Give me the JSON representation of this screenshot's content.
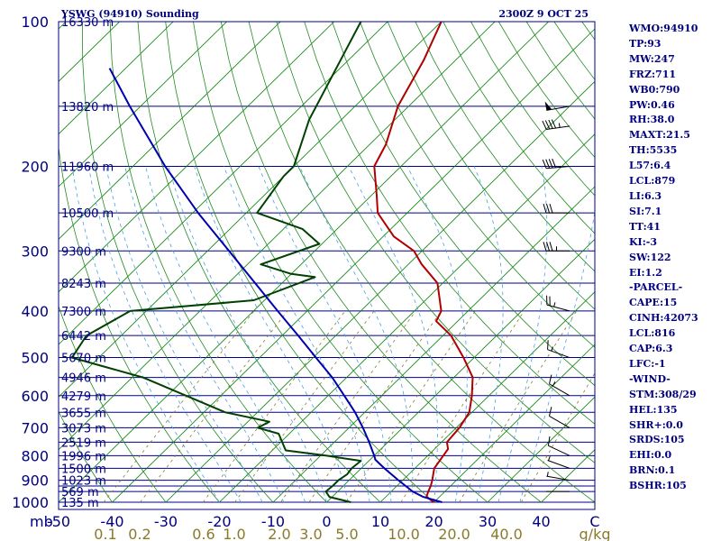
{
  "header": {
    "station": "YSWG (94910) Sounding",
    "time": "2300Z  9 OCT 25"
  },
  "colors": {
    "frame": "#000080",
    "isobar": "#000080",
    "isotherm": "#008000",
    "dry_adiabat": "#228b22",
    "moist_adiabat": "#4aa0e0",
    "mixing_ratio": "#8a7a2a",
    "temperature": "#b00000",
    "dewpoint": "#004000",
    "parcel": "#0000b0"
  },
  "indices": [
    "WMO:94910",
    "TP:93",
    "MW:247",
    "FRZ:711",
    "WB0:790",
    "PW:0.46",
    "RH:38.0",
    "MAXT:21.5",
    "TH:5535",
    "L57:6.4",
    "LCL:879",
    "LI:6.3",
    "SI:7.1",
    "TT:41",
    "KI:-3",
    "SW:122",
    "EI:1.2",
    "-PARCEL-",
    "CAPE:15",
    "CINH:42073",
    "LCL:816",
    "CAP:6.3",
    "LFC:-1",
    "-WIND-",
    "STM:308/29",
    "HEL:135",
    "SHR+:0.0",
    "SRDS:105",
    "EHI:0.0",
    "BRN:0.1",
    "BSHR:105"
  ],
  "chart_data": {
    "type": "line",
    "title": "YSWG (94910) Sounding",
    "subtitle": "2300Z  9 OCT 25",
    "xlabel": "",
    "ylabel": "mb",
    "x_axis_ticks": [
      "-50",
      "-40",
      "-30",
      "-20",
      "-10",
      "0",
      "10",
      "20",
      "30",
      "40",
      "C"
    ],
    "y_axis_labels": [
      "100",
      "200",
      "300",
      "400",
      "500",
      "600",
      "700",
      "800",
      "900",
      "1000"
    ],
    "pressure_levels": [
      100,
      150,
      200,
      250,
      300,
      350,
      400,
      450,
      500,
      550,
      600,
      650,
      700,
      750,
      800,
      850,
      900,
      925,
      950,
      1000
    ],
    "height_labels": [
      {
        "p": 100,
        "label": "16330 m"
      },
      {
        "p": 150,
        "label": "13820 m"
      },
      {
        "p": 200,
        "label": "11960 m"
      },
      {
        "p": 250,
        "label": "10500 m"
      },
      {
        "p": 300,
        "label": "9300 m"
      },
      {
        "p": 350,
        "label": "8243 m"
      },
      {
        "p": 400,
        "label": "7300 m"
      },
      {
        "p": 450,
        "label": "6442 m"
      },
      {
        "p": 500,
        "label": "5670 m"
      },
      {
        "p": 550,
        "label": "4946 m"
      },
      {
        "p": 600,
        "label": "4279 m"
      },
      {
        "p": 650,
        "label": "3655 m"
      },
      {
        "p": 700,
        "label": "3073 m"
      },
      {
        "p": 750,
        "label": "2519 m"
      },
      {
        "p": 800,
        "label": "1996 m"
      },
      {
        "p": 850,
        "label": "1500 m"
      },
      {
        "p": 900,
        "label": "1023 m"
      },
      {
        "p": 950,
        "label": "569 m"
      },
      {
        "p": 1000,
        "label": "135 m"
      }
    ],
    "mixing_ratio_labels": [
      "0.1",
      "0.2",
      "0.6",
      "1.0",
      "2.0",
      "3.0",
      "5.0",
      "10.0",
      "20.0",
      "40.0",
      "g/kg"
    ],
    "series": [
      {
        "key": "temperature",
        "points": [
          [
            1000,
            20.0
          ],
          [
            975,
            17.6
          ],
          [
            950,
            16.9
          ],
          [
            925,
            16.3
          ],
          [
            900,
            15.5
          ],
          [
            850,
            13.6
          ],
          [
            800,
            12.9
          ],
          [
            775,
            12.5
          ],
          [
            750,
            11.0
          ],
          [
            700,
            10.6
          ],
          [
            650,
            9.5
          ],
          [
            600,
            6.8
          ],
          [
            550,
            3.5
          ],
          [
            500,
            -2.0
          ],
          [
            450,
            -8.5
          ],
          [
            420,
            -14.0
          ],
          [
            400,
            -15.0
          ],
          [
            350,
            -21.0
          ],
          [
            320,
            -27.5
          ],
          [
            300,
            -31.5
          ],
          [
            280,
            -38.0
          ],
          [
            250,
            -45.5
          ],
          [
            230,
            -49.0
          ],
          [
            200,
            -55.0
          ],
          [
            180,
            -57.0
          ],
          [
            150,
            -62.0
          ],
          [
            120,
            -66.0
          ],
          [
            100,
            -70.0
          ]
        ]
      },
      {
        "key": "dewpoint",
        "points": [
          [
            1000,
            4.5
          ],
          [
            975,
            -0.5
          ],
          [
            950,
            -2.2
          ],
          [
            925,
            -2.0
          ],
          [
            900,
            -2.0
          ],
          [
            875,
            -1.5
          ],
          [
            850,
            -1.8
          ],
          [
            820,
            -1.5
          ],
          [
            800,
            -9.0
          ],
          [
            780,
            -17.5
          ],
          [
            720,
            -22.0
          ],
          [
            700,
            -27.0
          ],
          [
            680,
            -26.0
          ],
          [
            650,
            -36.0
          ],
          [
            550,
            -58.0
          ],
          [
            500,
            -75.0
          ],
          [
            450,
            -76.5
          ],
          [
            400,
            -73.0
          ],
          [
            380,
            -52.0
          ],
          [
            340,
            -45.0
          ],
          [
            335,
            -50.0
          ],
          [
            320,
            -57.5
          ],
          [
            290,
            -50.5
          ],
          [
            270,
            -56.5
          ],
          [
            250,
            -68.0
          ],
          [
            210,
            -70.0
          ],
          [
            200,
            -70.0
          ],
          [
            160,
            -76.0
          ],
          [
            100,
            -85.0
          ]
        ]
      },
      {
        "key": "parcel",
        "points": [
          [
            1000,
            21.5
          ],
          [
            975,
            17.0
          ],
          [
            950,
            14.0
          ],
          [
            900,
            9.2
          ],
          [
            850,
            4.3
          ],
          [
            816,
            1.0
          ],
          [
            800,
            0.0
          ],
          [
            750,
            -3.5
          ],
          [
            700,
            -7.4
          ],
          [
            650,
            -11.8
          ],
          [
            600,
            -17.0
          ],
          [
            550,
            -22.7
          ],
          [
            500,
            -29.5
          ],
          [
            450,
            -37.0
          ],
          [
            400,
            -45.5
          ],
          [
            350,
            -55.0
          ],
          [
            300,
            -66.0
          ],
          [
            250,
            -79.0
          ],
          [
            200,
            -94.0
          ],
          [
            150,
            -112.0
          ],
          [
            125,
            -123.0
          ]
        ]
      }
    ],
    "wind_barbs": [
      {
        "p": 150,
        "dir": 260,
        "spd": 50
      },
      {
        "p": 165,
        "dir": 262,
        "spd": 45
      },
      {
        "p": 200,
        "dir": 265,
        "spd": 40
      },
      {
        "p": 250,
        "dir": 270,
        "spd": 30
      },
      {
        "p": 300,
        "dir": 270,
        "spd": 35
      },
      {
        "p": 400,
        "dir": 285,
        "spd": 25
      },
      {
        "p": 500,
        "dir": 290,
        "spd": 15
      },
      {
        "p": 600,
        "dir": 300,
        "spd": 15
      },
      {
        "p": 700,
        "dir": 300,
        "spd": 10
      },
      {
        "p": 800,
        "dir": 295,
        "spd": 10
      },
      {
        "p": 850,
        "dir": 290,
        "spd": 8
      },
      {
        "p": 900,
        "dir": 280,
        "spd": 5
      },
      {
        "p": 950,
        "dir": 270,
        "spd": 3
      }
    ],
    "ylim": [
      1000,
      100
    ],
    "xlim": [
      -50,
      50
    ],
    "grid": true
  }
}
